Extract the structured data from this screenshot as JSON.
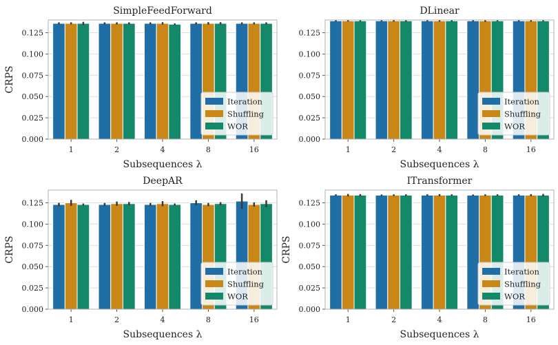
{
  "colors": {
    "Iteration": "#1f6fa6",
    "Shuffling": "#c98717",
    "WOR": "#13896a"
  },
  "chart_data": [
    {
      "type": "bar",
      "title": "SimpleFeedForward",
      "xlabel": "Subsequences λ",
      "ylabel": "CRPS",
      "categories": [
        "1",
        "2",
        "4",
        "8",
        "16"
      ],
      "ylim": [
        0,
        0.14
      ],
      "yticks": [
        "0.000",
        "0.025",
        "0.050",
        "0.075",
        "0.100",
        "0.125"
      ],
      "grid": "horizontal",
      "legend_position": "lower-right",
      "series": [
        {
          "name": "Iteration",
          "values": [
            0.136,
            0.136,
            0.136,
            0.136,
            0.136
          ],
          "errors": [
            0.0012,
            0.0012,
            0.0012,
            0.0012,
            0.0012
          ]
        },
        {
          "name": "Shuffling",
          "values": [
            0.136,
            0.136,
            0.136,
            0.136,
            0.136
          ],
          "errors": [
            0.0012,
            0.0012,
            0.0014,
            0.0014,
            0.0012
          ]
        },
        {
          "name": "WOR",
          "values": [
            0.136,
            0.136,
            0.135,
            0.136,
            0.136
          ],
          "errors": [
            0.0018,
            0.0012,
            0.001,
            0.0014,
            0.0012
          ]
        }
      ]
    },
    {
      "type": "bar",
      "title": "DLinear",
      "xlabel": "Subsequences λ",
      "ylabel": "",
      "categories": [
        "1",
        "2",
        "4",
        "8",
        "16"
      ],
      "ylim": [
        0,
        0.14
      ],
      "yticks": [
        "0.000",
        "0.025",
        "0.050",
        "0.075",
        "0.100",
        "0.125"
      ],
      "grid": "horizontal",
      "legend_position": "lower-right",
      "series": [
        {
          "name": "Iteration",
          "values": [
            0.139,
            0.139,
            0.139,
            0.139,
            0.139
          ],
          "errors": [
            0.0008,
            0.0008,
            0.0008,
            0.0008,
            0.0008
          ]
        },
        {
          "name": "Shuffling",
          "values": [
            0.139,
            0.139,
            0.139,
            0.139,
            0.139
          ],
          "errors": [
            0.0008,
            0.001,
            0.001,
            0.0012,
            0.001
          ]
        },
        {
          "name": "WOR",
          "values": [
            0.139,
            0.139,
            0.139,
            0.139,
            0.139
          ],
          "errors": [
            0.0008,
            0.001,
            0.0008,
            0.0008,
            0.0008
          ]
        }
      ]
    },
    {
      "type": "bar",
      "title": "DeepAR",
      "xlabel": "Subsequences λ",
      "ylabel": "CRPS",
      "categories": [
        "1",
        "2",
        "4",
        "8",
        "16"
      ],
      "ylim": [
        0,
        0.14
      ],
      "yticks": [
        "0.000",
        "0.025",
        "0.050",
        "0.075",
        "0.100",
        "0.125"
      ],
      "grid": "horizontal",
      "legend_position": "lower-right",
      "series": [
        {
          "name": "Iteration",
          "values": [
            0.123,
            0.123,
            0.123,
            0.125,
            0.127
          ],
          "errors": [
            0.002,
            0.0018,
            0.0018,
            0.003,
            0.009
          ]
        },
        {
          "name": "Shuffling",
          "values": [
            0.125,
            0.124,
            0.124,
            0.123,
            0.123
          ],
          "errors": [
            0.0035,
            0.0025,
            0.003,
            0.0018,
            0.0025
          ]
        },
        {
          "name": "WOR",
          "values": [
            0.123,
            0.124,
            0.123,
            0.124,
            0.124
          ],
          "errors": [
            0.0012,
            0.002,
            0.0012,
            0.0018,
            0.004
          ]
        }
      ]
    },
    {
      "type": "bar",
      "title": "ITransformer",
      "xlabel": "Subsequences λ",
      "ylabel": "CRPS",
      "categories": [
        "1",
        "2",
        "4",
        "8",
        "16"
      ],
      "ylim": [
        0,
        0.14
      ],
      "yticks": [
        "0.000",
        "0.025",
        "0.050",
        "0.075",
        "0.100",
        "0.125"
      ],
      "grid": "horizontal",
      "legend_position": "lower-right",
      "series": [
        {
          "name": "Iteration",
          "values": [
            0.134,
            0.134,
            0.134,
            0.134,
            0.134
          ],
          "errors": [
            0.001,
            0.0008,
            0.001,
            0.0008,
            0.001
          ]
        },
        {
          "name": "Shuffling",
          "values": [
            0.134,
            0.134,
            0.134,
            0.134,
            0.134
          ],
          "errors": [
            0.0014,
            0.001,
            0.0012,
            0.001,
            0.0012
          ]
        },
        {
          "name": "WOR",
          "values": [
            0.134,
            0.134,
            0.134,
            0.134,
            0.134
          ],
          "errors": [
            0.0012,
            0.001,
            0.001,
            0.001,
            0.0014
          ]
        }
      ]
    }
  ]
}
